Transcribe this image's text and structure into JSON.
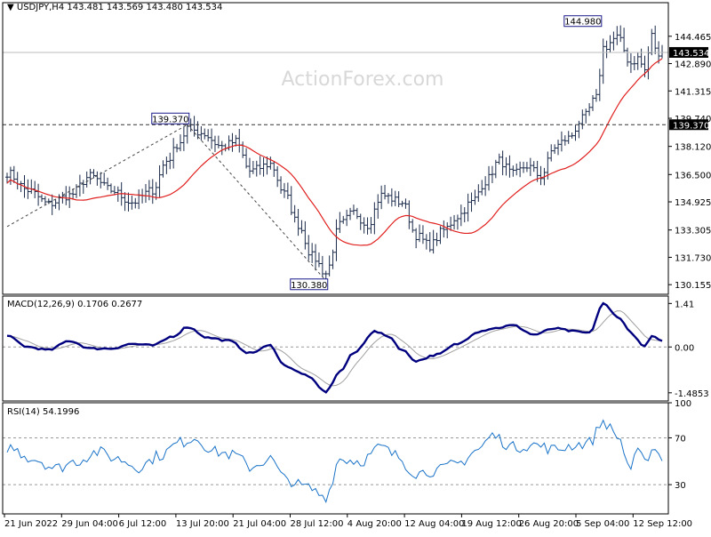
{
  "header": {
    "symbol": "USDJPY,H4",
    "open": "143.481",
    "high": "143.569",
    "low": "143.480",
    "close": "143.534"
  },
  "watermark": "ActionForex.com",
  "chart_data": [
    {
      "type": "candlestick",
      "symbol": "USDJPY",
      "timeframe": "H4",
      "ylim": [
        129.6,
        146.4
      ],
      "y_ticks": [
        "144.465",
        "142.890",
        "141.315",
        "139.740",
        "138.120",
        "136.500",
        "134.925",
        "133.305",
        "131.730",
        "130.155"
      ],
      "price_marker": "143.534",
      "level_marker": "139.370",
      "annotations": [
        {
          "text": "144.980",
          "bar": 171,
          "value": 144.98,
          "pos": "high"
        },
        {
          "text": "139.370",
          "bar": 52,
          "value": 139.37,
          "pos": "high"
        },
        {
          "text": "130.380",
          "bar": 92,
          "value": 130.38,
          "pos": "low"
        }
      ],
      "horizontal_lines": [
        {
          "value": 143.534,
          "style": "solid"
        },
        {
          "value": 139.37,
          "style": "dashed"
        }
      ],
      "trendlines": [
        {
          "from": {
            "bar": 0,
            "value": 133.5
          },
          "to": {
            "bar": 52,
            "value": 139.37
          }
        },
        {
          "from": {
            "bar": 52,
            "value": 139.37
          },
          "to": {
            "bar": 92,
            "value": 130.38
          }
        }
      ],
      "moving_average": {
        "color": "#e0201e"
      }
    },
    {
      "type": "line",
      "indicator": "MACD",
      "label": "MACD(12,26,9) 0.1706 0.2677",
      "ylim": [
        -1.75,
        1.65
      ],
      "y_ticks": [
        "1.41",
        "0.00",
        "-1.4853"
      ],
      "zero_line": 0.0,
      "series_colors": {
        "macd": "#00007f",
        "signal": "#a0a0a0"
      }
    },
    {
      "type": "line",
      "indicator": "RSI",
      "label": "RSI(14) 54.1996",
      "ylim": [
        5,
        100
      ],
      "y_ticks": [
        "100",
        "70",
        "30"
      ],
      "levels": [
        70,
        30
      ],
      "series_colors": {
        "rsi": "#1a73c8"
      }
    }
  ],
  "x_axis_labels": [
    "21 Jun 2022",
    "29 Jun 04:00",
    "6 Jul 12:00",
    "13 Jul 20:00",
    "21 Jul 04:00",
    "28 Jul 12:00",
    "4 Aug 20:00",
    "12 Aug 04:00",
    "19 Aug 12:00",
    "26 Aug 20:00",
    "5 Sep 04:00",
    "12 Sep 12:00"
  ],
  "colors": {
    "frame": "#000000",
    "grid": "#c0c0c0",
    "bars": "#1a2a4a"
  }
}
